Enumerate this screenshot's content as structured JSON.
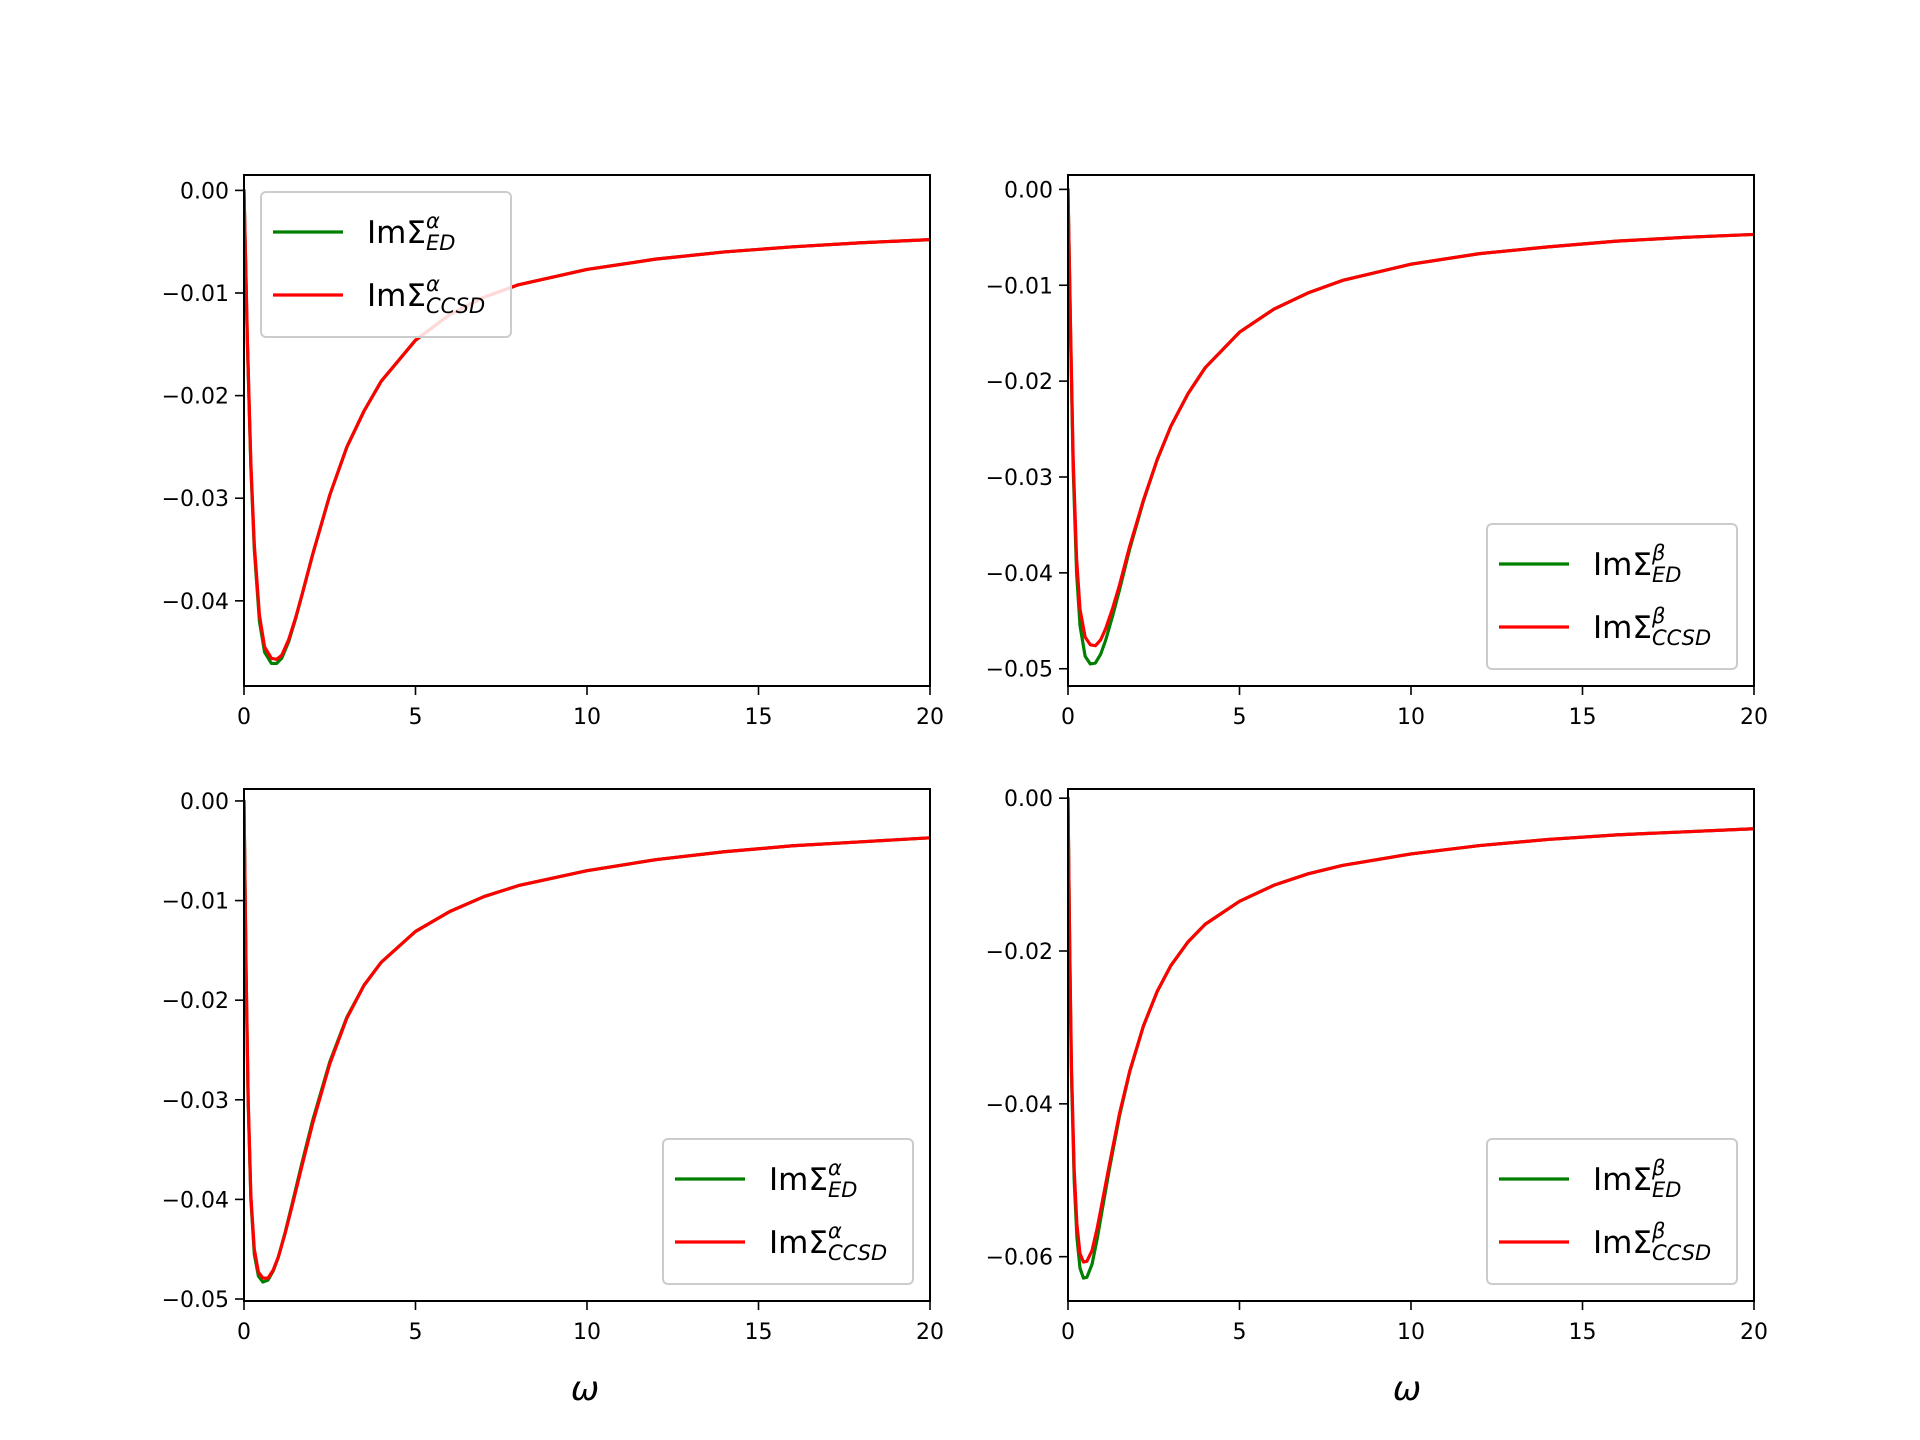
{
  "chart_data": [
    {
      "type": "line",
      "xlim": [
        0,
        20
      ],
      "ylim": [
        -0.0483,
        0.0015
      ],
      "xticks": [
        0,
        5,
        10,
        15,
        20
      ],
      "xtick_labels": [
        "0",
        "5",
        "10",
        "15",
        "20"
      ],
      "yticks": [
        0,
        -0.01,
        -0.02,
        -0.03,
        -0.04
      ],
      "ytick_labels": [
        "0.00",
        "−0.01",
        "−0.02",
        "−0.03",
        "−0.04"
      ],
      "xlabel": "",
      "legend_position": "upper-left",
      "series": [
        {
          "name": "ImΣ",
          "sup": "α",
          "sub": "ED",
          "color": "#008000",
          "x": [
            0,
            0.1,
            0.2,
            0.3,
            0.45,
            0.6,
            0.8,
            0.95,
            1.1,
            1.3,
            1.5,
            1.7,
            2.0,
            2.5,
            3.0,
            3.5,
            4.0,
            5.0,
            6.0,
            7.0,
            8.0,
            10.0,
            12.0,
            14.0,
            16.0,
            18.0,
            20.0
          ],
          "y": [
            0,
            -0.015,
            -0.027,
            -0.035,
            -0.042,
            -0.045,
            -0.0461,
            -0.0461,
            -0.0456,
            -0.044,
            -0.0418,
            -0.0393,
            -0.0355,
            -0.0297,
            -0.025,
            -0.0215,
            -0.0186,
            -0.0146,
            -0.0121,
            -0.0104,
            -0.0092,
            -0.0077,
            -0.0067,
            -0.006,
            -0.0055,
            -0.0051,
            -0.0048
          ]
        },
        {
          "name": "ImΣ",
          "sup": "α",
          "sub": "CCSD",
          "color": "#ff0000",
          "x": [
            0,
            0.1,
            0.2,
            0.3,
            0.45,
            0.6,
            0.8,
            0.95,
            1.1,
            1.3,
            1.5,
            1.7,
            2.0,
            2.5,
            3.0,
            3.5,
            4.0,
            5.0,
            6.0,
            7.0,
            8.0,
            10.0,
            12.0,
            14.0,
            16.0,
            18.0,
            20.0
          ],
          "y": [
            0,
            -0.0148,
            -0.0266,
            -0.0345,
            -0.0414,
            -0.0445,
            -0.0456,
            -0.0457,
            -0.0453,
            -0.0438,
            -0.0417,
            -0.0393,
            -0.0355,
            -0.0297,
            -0.025,
            -0.0215,
            -0.0186,
            -0.0146,
            -0.0121,
            -0.0104,
            -0.0092,
            -0.0077,
            -0.0067,
            -0.006,
            -0.0055,
            -0.0051,
            -0.0048
          ]
        }
      ]
    },
    {
      "type": "line",
      "xlim": [
        0,
        20
      ],
      "ylim": [
        -0.0518,
        0.0015
      ],
      "xticks": [
        0,
        5,
        10,
        15,
        20
      ],
      "xtick_labels": [
        "0",
        "5",
        "10",
        "15",
        "20"
      ],
      "yticks": [
        0,
        -0.01,
        -0.02,
        -0.03,
        -0.04,
        -0.05
      ],
      "ytick_labels": [
        "0.00",
        "−0.01",
        "−0.02",
        "−0.03",
        "−0.04",
        "−0.05"
      ],
      "xlabel": "",
      "legend_position": "lower-right",
      "series": [
        {
          "name": "ImΣ",
          "sup": "β",
          "sub": "ED",
          "color": "#008000",
          "x": [
            0,
            0.08,
            0.15,
            0.25,
            0.35,
            0.5,
            0.65,
            0.8,
            0.95,
            1.1,
            1.3,
            1.5,
            1.8,
            2.2,
            2.6,
            3.0,
            3.5,
            4.0,
            5.0,
            6.0,
            7.0,
            8.0,
            10.0,
            12.0,
            14.0,
            16.0,
            18.0,
            20.0
          ],
          "y": [
            0,
            -0.016,
            -0.029,
            -0.04,
            -0.0455,
            -0.0487,
            -0.0495,
            -0.0494,
            -0.0485,
            -0.047,
            -0.0445,
            -0.0418,
            -0.0375,
            -0.0325,
            -0.0282,
            -0.0247,
            -0.0213,
            -0.0186,
            -0.0149,
            -0.0125,
            -0.0108,
            -0.0095,
            -0.0078,
            -0.0067,
            -0.006,
            -0.0054,
            -0.005,
            -0.0047
          ]
        },
        {
          "name": "ImΣ",
          "sup": "β",
          "sub": "CCSD",
          "color": "#ff0000",
          "x": [
            0,
            0.08,
            0.15,
            0.25,
            0.35,
            0.5,
            0.65,
            0.8,
            0.95,
            1.1,
            1.3,
            1.5,
            1.8,
            2.2,
            2.6,
            3.0,
            3.5,
            4.0,
            5.0,
            6.0,
            7.0,
            8.0,
            10.0,
            12.0,
            14.0,
            16.0,
            18.0,
            20.0
          ],
          "y": [
            0,
            -0.0155,
            -0.028,
            -0.0385,
            -0.0438,
            -0.0467,
            -0.0475,
            -0.0476,
            -0.047,
            -0.0458,
            -0.0437,
            -0.0413,
            -0.0372,
            -0.0324,
            -0.0282,
            -0.0247,
            -0.0213,
            -0.0186,
            -0.0149,
            -0.0125,
            -0.0108,
            -0.0095,
            -0.0078,
            -0.0067,
            -0.006,
            -0.0054,
            -0.005,
            -0.0047
          ]
        }
      ]
    },
    {
      "type": "line",
      "xlim": [
        0,
        20
      ],
      "ylim": [
        -0.0502,
        0.0012
      ],
      "xticks": [
        0,
        5,
        10,
        15,
        20
      ],
      "xtick_labels": [
        "0",
        "5",
        "10",
        "15",
        "20"
      ],
      "yticks": [
        0,
        -0.01,
        -0.02,
        -0.03,
        -0.04,
        -0.05
      ],
      "ytick_labels": [
        "0.00",
        "−0.01",
        "−0.02",
        "−0.03",
        "−0.04",
        "−0.05"
      ],
      "xlabel": "ω",
      "legend_position": "lower-right",
      "series": [
        {
          "name": "ImΣ",
          "sup": "α",
          "sub": "ED",
          "color": "#008000",
          "x": [
            0,
            0.06,
            0.12,
            0.2,
            0.3,
            0.42,
            0.55,
            0.7,
            0.85,
            1.0,
            1.2,
            1.4,
            1.7,
            2.0,
            2.5,
            3.0,
            3.5,
            4.0,
            5.0,
            6.0,
            7.0,
            8.0,
            10.0,
            12.0,
            14.0,
            16.0,
            18.0,
            20.0
          ],
          "y": [
            0,
            -0.017,
            -0.03,
            -0.04,
            -0.0455,
            -0.0477,
            -0.0483,
            -0.0481,
            -0.0472,
            -0.0458,
            -0.0433,
            -0.0405,
            -0.0362,
            -0.0321,
            -0.0262,
            -0.0217,
            -0.0185,
            -0.0162,
            -0.0131,
            -0.0111,
            -0.0096,
            -0.0085,
            -0.007,
            -0.0059,
            -0.0051,
            -0.0045,
            -0.0041,
            -0.0037
          ]
        },
        {
          "name": "ImΣ",
          "sup": "α",
          "sub": "CCSD",
          "color": "#ff0000",
          "x": [
            0,
            0.06,
            0.12,
            0.2,
            0.3,
            0.42,
            0.55,
            0.7,
            0.85,
            1.0,
            1.2,
            1.4,
            1.7,
            2.0,
            2.5,
            3.0,
            3.5,
            4.0,
            5.0,
            6.0,
            7.0,
            8.0,
            10.0,
            12.0,
            14.0,
            16.0,
            18.0,
            20.0
          ],
          "y": [
            0,
            -0.0168,
            -0.0297,
            -0.0396,
            -0.045,
            -0.0473,
            -0.0479,
            -0.0479,
            -0.0471,
            -0.0458,
            -0.0434,
            -0.0407,
            -0.0365,
            -0.0324,
            -0.0264,
            -0.0218,
            -0.0185,
            -0.0162,
            -0.0131,
            -0.0111,
            -0.0096,
            -0.0085,
            -0.007,
            -0.0059,
            -0.0051,
            -0.0045,
            -0.0041,
            -0.0037
          ]
        }
      ]
    },
    {
      "type": "line",
      "xlim": [
        0,
        20
      ],
      "ylim": [
        -0.0658,
        0.0012
      ],
      "xticks": [
        0,
        5,
        10,
        15,
        20
      ],
      "xtick_labels": [
        "0",
        "5",
        "10",
        "15",
        "20"
      ],
      "yticks": [
        0,
        -0.02,
        -0.04,
        -0.06
      ],
      "ytick_labels": [
        "0.00",
        "−0.02",
        "−0.04",
        "−0.06"
      ],
      "xlabel": "ω",
      "legend_position": "lower-right",
      "series": [
        {
          "name": "ImΣ",
          "sup": "β",
          "sub": "ED",
          "color": "#008000",
          "x": [
            0,
            0.05,
            0.1,
            0.18,
            0.26,
            0.35,
            0.45,
            0.55,
            0.7,
            0.85,
            1.0,
            1.2,
            1.5,
            1.8,
            2.2,
            2.6,
            3.0,
            3.5,
            4.0,
            5.0,
            6.0,
            7.0,
            8.0,
            10.0,
            12.0,
            14.0,
            16.0,
            18.0,
            20.0
          ],
          "y": [
            0,
            -0.02,
            -0.036,
            -0.05,
            -0.0575,
            -0.0615,
            -0.0628,
            -0.0627,
            -0.061,
            -0.0577,
            -0.0538,
            -0.0487,
            -0.0416,
            -0.0358,
            -0.0298,
            -0.0253,
            -0.0219,
            -0.0188,
            -0.0165,
            -0.0135,
            -0.0114,
            -0.0099,
            -0.0088,
            -0.0073,
            -0.0062,
            -0.0054,
            -0.0048,
            -0.0044,
            -0.004
          ]
        },
        {
          "name": "ImΣ",
          "sup": "β",
          "sub": "CCSD",
          "color": "#ff0000",
          "x": [
            0,
            0.05,
            0.1,
            0.18,
            0.26,
            0.35,
            0.45,
            0.55,
            0.7,
            0.85,
            1.0,
            1.2,
            1.5,
            1.8,
            2.2,
            2.6,
            3.0,
            3.5,
            4.0,
            5.0,
            6.0,
            7.0,
            8.0,
            10.0,
            12.0,
            14.0,
            16.0,
            18.0,
            20.0
          ],
          "y": [
            0,
            -0.0195,
            -0.035,
            -0.0486,
            -0.0558,
            -0.0596,
            -0.0607,
            -0.0606,
            -0.0592,
            -0.0563,
            -0.0528,
            -0.0481,
            -0.0413,
            -0.0357,
            -0.0298,
            -0.0253,
            -0.0219,
            -0.0188,
            -0.0165,
            -0.0135,
            -0.0114,
            -0.0099,
            -0.0088,
            -0.0073,
            -0.0062,
            -0.0054,
            -0.0048,
            -0.0044,
            -0.004
          ]
        }
      ]
    }
  ]
}
